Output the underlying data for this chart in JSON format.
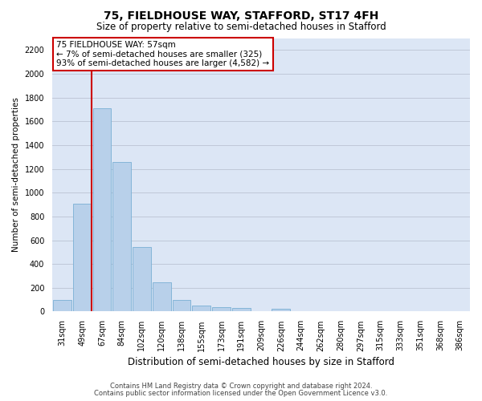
{
  "title": "75, FIELDHOUSE WAY, STAFFORD, ST17 4FH",
  "subtitle": "Size of property relative to semi-detached houses in Stafford",
  "xlabel": "Distribution of semi-detached houses by size in Stafford",
  "ylabel": "Number of semi-detached properties",
  "footer1": "Contains HM Land Registry data © Crown copyright and database right 2024.",
  "footer2": "Contains public sector information licensed under the Open Government Licence v3.0.",
  "annotation_title": "75 FIELDHOUSE WAY: 57sqm",
  "annotation_line2": "← 7% of semi-detached houses are smaller (325)",
  "annotation_line3": "93% of semi-detached houses are larger (4,582) →",
  "property_size": 57,
  "bar_data": [
    {
      "label": "31sqm",
      "value": 95
    },
    {
      "label": "49sqm",
      "value": 910
    },
    {
      "label": "67sqm",
      "value": 1710
    },
    {
      "label": "84sqm",
      "value": 1260
    },
    {
      "label": "102sqm",
      "value": 540
    },
    {
      "label": "120sqm",
      "value": 245
    },
    {
      "label": "138sqm",
      "value": 100
    },
    {
      "label": "155sqm",
      "value": 52
    },
    {
      "label": "173sqm",
      "value": 38
    },
    {
      "label": "191sqm",
      "value": 28
    },
    {
      "label": "209sqm",
      "value": 0
    },
    {
      "label": "226sqm",
      "value": 22
    },
    {
      "label": "244sqm",
      "value": 0
    },
    {
      "label": "262sqm",
      "value": 0
    },
    {
      "label": "280sqm",
      "value": 0
    },
    {
      "label": "297sqm",
      "value": 0
    },
    {
      "label": "315sqm",
      "value": 0
    },
    {
      "label": "333sqm",
      "value": 0
    },
    {
      "label": "351sqm",
      "value": 0
    },
    {
      "label": "368sqm",
      "value": 0
    },
    {
      "label": "386sqm",
      "value": 0
    }
  ],
  "bar_color": "#b8d0ea",
  "bar_edge_color": "#7aafd4",
  "vline_color": "#cc0000",
  "ylim": [
    0,
    2300
  ],
  "yticks": [
    0,
    200,
    400,
    600,
    800,
    1000,
    1200,
    1400,
    1600,
    1800,
    2000,
    2200
  ],
  "bg_color": "#dce6f5",
  "annotation_box_color": "#ffffff",
  "annotation_box_edge": "#cc0000",
  "grid_color": "#c0c8d8",
  "title_fontsize": 10,
  "subtitle_fontsize": 8.5,
  "ylabel_fontsize": 7.5,
  "xlabel_fontsize": 8.5,
  "tick_fontsize": 7,
  "footer_fontsize": 6,
  "annotation_fontsize": 7.5
}
